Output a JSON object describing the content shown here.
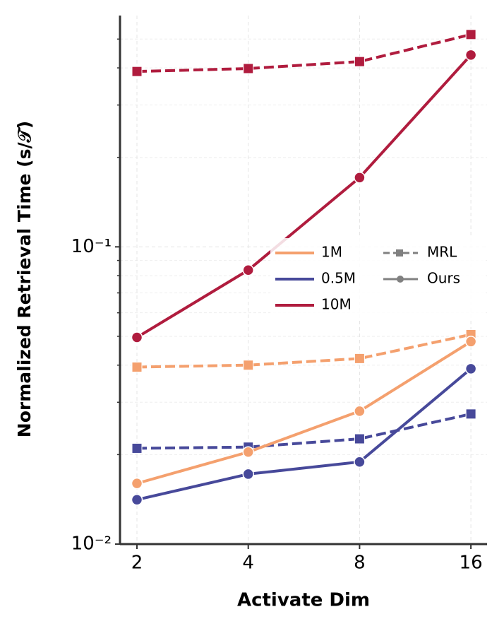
{
  "chart_data": {
    "type": "line",
    "y_label": "Normalized Retrieval Time (s/𝒯)",
    "x_label": "Activate Dim",
    "categories": [
      "2",
      "4",
      "8",
      "16"
    ],
    "ylim": [
      0.01,
      0.6
    ],
    "log_y": true,
    "yticks": [
      {
        "value": 0.01,
        "label": "10⁻²"
      },
      {
        "value": 0.1,
        "label": "10⁻¹"
      }
    ],
    "minor_yticks": [
      0.02,
      0.03,
      0.04,
      0.05,
      0.06,
      0.07,
      0.08,
      0.09,
      0.2,
      0.3,
      0.4,
      0.5
    ],
    "grid": true,
    "legend": {
      "location": "center right",
      "colors": [
        {
          "name": "1M",
          "color": "#f4a06e"
        },
        {
          "name": "0.5M",
          "color": "#47499a"
        },
        {
          "name": "10M",
          "color": "#b01c3e"
        }
      ],
      "styles": [
        {
          "name": "MRL",
          "dash": true,
          "marker": "square"
        },
        {
          "name": "Ours",
          "dash": false,
          "marker": "circle"
        }
      ],
      "style_color": "#808080"
    },
    "series": [
      {
        "color_index": 0,
        "style_index": 0,
        "values": [
          0.0394,
          0.04,
          0.0421,
          0.0507
        ]
      },
      {
        "color_index": 1,
        "style_index": 0,
        "values": [
          0.021,
          0.0212,
          0.0226,
          0.0274
        ]
      },
      {
        "color_index": 2,
        "style_index": 0,
        "values": [
          0.389,
          0.398,
          0.42,
          0.518
        ]
      },
      {
        "color_index": 0,
        "style_index": 1,
        "values": [
          0.016,
          0.0204,
          0.028,
          0.048
        ]
      },
      {
        "color_index": 1,
        "style_index": 1,
        "values": [
          0.0141,
          0.0172,
          0.0189,
          0.0389
        ]
      },
      {
        "color_index": 2,
        "style_index": 1,
        "values": [
          0.0496,
          0.0835,
          0.171,
          0.442
        ]
      }
    ]
  }
}
